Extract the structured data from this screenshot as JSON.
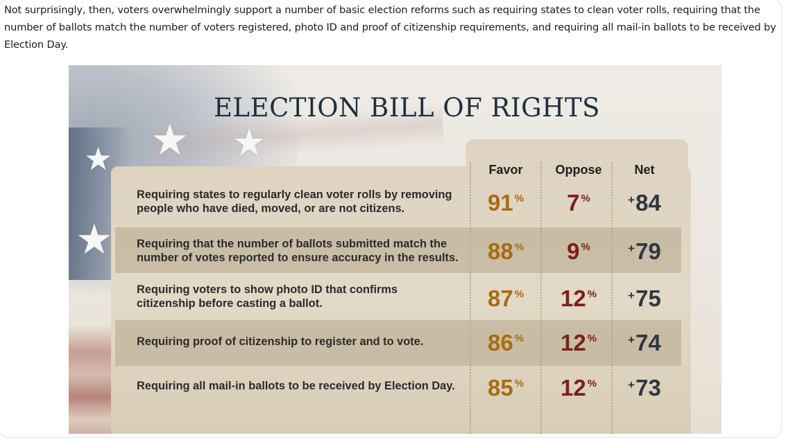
{
  "intro_text": "Not surprisingly, then, voters overwhelmingly support a number of basic election reforms such as requiring states to clean voter rolls, requiring that the number of ballots match the number of voters registered, photo ID and proof of citizenship requirements, and requiring all mail-in ballots to be received by Election Day.",
  "graphic": {
    "title": "ELECTION BILL OF RIGHTS",
    "columns": [
      "Favor",
      "Oppose",
      "Net"
    ],
    "rows": [
      {
        "label_line1": "Requiring states to regularly clean voter rolls by removing",
        "label_line2": "people who have died, moved, or are not citizens.",
        "favor": "91",
        "oppose": "7",
        "net": "84"
      },
      {
        "label_line1": "Requiring that the number of ballots submitted match the",
        "label_line2": "number of votes reported to ensure accuracy in the results.",
        "favor": "88",
        "oppose": "9",
        "net": "79"
      },
      {
        "label_line1": "Requiring voters to show photo ID that confirms",
        "label_line2": "citizenship before casting a ballot.",
        "favor": "87",
        "oppose": "12",
        "net": "75"
      },
      {
        "label_line1": "Requiring proof of citizenship to register and to vote.",
        "label_line2": "",
        "favor": "86",
        "oppose": "12",
        "net": "74"
      },
      {
        "label_line1": "Requiring all mail-in ballots to be received by Election Day.",
        "label_line2": "",
        "favor": "85",
        "oppose": "12",
        "net": "73"
      }
    ],
    "percent_symbol": "%",
    "plus_symbol": "+",
    "colors": {
      "favor": "#a66d12",
      "oppose": "#7d1f1c",
      "net": "#2f3642",
      "title": "#1f2f3f"
    }
  }
}
